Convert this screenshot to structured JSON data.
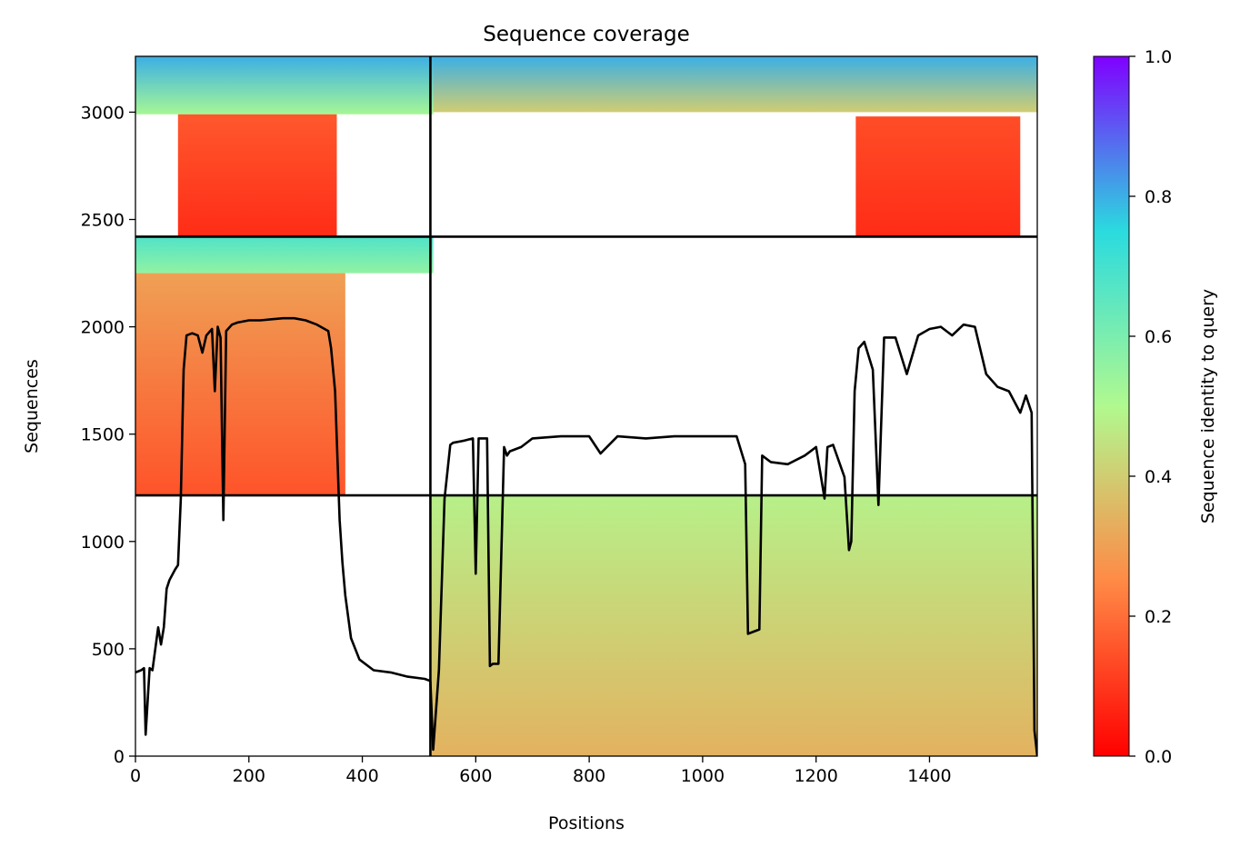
{
  "chart_data": {
    "type": "heatmap",
    "title": "Sequence coverage",
    "xlabel": "Positions",
    "ylabel": "Sequences",
    "xlim": [
      0,
      1590
    ],
    "ylim": [
      0,
      3260
    ],
    "xticks": [
      0,
      200,
      400,
      600,
      800,
      1000,
      1200,
      1400
    ],
    "yticks": [
      0,
      500,
      1000,
      1500,
      2000,
      2500,
      3000
    ],
    "colorbar": {
      "label": "Sequence identity to query",
      "range": [
        0,
        1
      ],
      "ticks": [
        0.0,
        0.2,
        0.4,
        0.6,
        0.8,
        1.0
      ],
      "colormap": "rainbow_r",
      "colors": [
        "#ff0000",
        "#ff8a46",
        "#b1f98f",
        "#2adbdf",
        "#8000ff"
      ]
    },
    "domain_boundaries": {
      "x": [
        520
      ],
      "y": [
        1215,
        2420
      ]
    },
    "blocks": [
      {
        "x0": 0,
        "x1": 525,
        "y0": 2990,
        "y1": 3260,
        "id_bottom": 0.52,
        "id_top": 0.8
      },
      {
        "x0": 75,
        "x1": 355,
        "y0": 2420,
        "y1": 2990,
        "id_bottom": 0.08,
        "id_top": 0.16
      },
      {
        "x0": 525,
        "x1": 1590,
        "y0": 3000,
        "y1": 3260,
        "id_bottom": 0.4,
        "id_top": 0.8
      },
      {
        "x0": 1270,
        "x1": 1560,
        "y0": 2420,
        "y1": 2980,
        "id_bottom": 0.08,
        "id_top": 0.14
      },
      {
        "x0": 0,
        "x1": 525,
        "y0": 2250,
        "y1": 2420,
        "id_bottom": 0.56,
        "id_top": 0.68
      },
      {
        "x0": 0,
        "x1": 370,
        "y0": 1215,
        "y1": 2250,
        "id_bottom": 0.15,
        "id_top": 0.3
      },
      {
        "x0": 520,
        "x1": 1590,
        "y0": 0,
        "y1": 1215,
        "id_bottom": 0.34,
        "id_top": 0.48
      }
    ],
    "series": [
      {
        "type": "line",
        "x": [
          0,
          10,
          15,
          18,
          25,
          30,
          40,
          45,
          50,
          55,
          60,
          70,
          75,
          80,
          85,
          90,
          100,
          110,
          118,
          125,
          135,
          140,
          145,
          150,
          155,
          160,
          170,
          180,
          200,
          220,
          240,
          260,
          280,
          300,
          320,
          340,
          345,
          352,
          360,
          365,
          370,
          380,
          395,
          420,
          450,
          480,
          510,
          520,
          525,
          535,
          545,
          555,
          560,
          580,
          595,
          600,
          605,
          620,
          625,
          630,
          640,
          650,
          655,
          660,
          680,
          700,
          750,
          800,
          820,
          850,
          900,
          950,
          1000,
          1060,
          1075,
          1080,
          1100,
          1105,
          1120,
          1150,
          1180,
          1200,
          1215,
          1220,
          1230,
          1250,
          1258,
          1262,
          1268,
          1275,
          1285,
          1300,
          1310,
          1320,
          1340,
          1360,
          1380,
          1400,
          1420,
          1440,
          1460,
          1480,
          1500,
          1520,
          1540,
          1560,
          1570,
          1580,
          1585,
          1590
        ],
        "y": [
          390,
          400,
          410,
          100,
          410,
          400,
          600,
          520,
          600,
          780,
          820,
          870,
          890,
          1200,
          1800,
          1960,
          1970,
          1960,
          1880,
          1960,
          1990,
          1700,
          2000,
          1950,
          1100,
          1980,
          2010,
          2020,
          2030,
          2030,
          2035,
          2040,
          2040,
          2030,
          2010,
          1980,
          1900,
          1700,
          1100,
          900,
          750,
          550,
          450,
          400,
          390,
          370,
          360,
          350,
          30,
          400,
          1200,
          1450,
          1460,
          1470,
          1480,
          850,
          1480,
          1480,
          420,
          430,
          430,
          1440,
          1400,
          1420,
          1440,
          1480,
          1490,
          1490,
          1410,
          1490,
          1480,
          1490,
          1490,
          1490,
          1360,
          570,
          590,
          1400,
          1370,
          1360,
          1400,
          1440,
          1200,
          1440,
          1450,
          1300,
          960,
          1000,
          1700,
          1900,
          1930,
          1800,
          1170,
          1950,
          1950,
          1780,
          1960,
          1990,
          2000,
          1960,
          2010,
          2000,
          1780,
          1720,
          1700,
          1600,
          1680,
          1600,
          120,
          0
        ]
      }
    ]
  }
}
